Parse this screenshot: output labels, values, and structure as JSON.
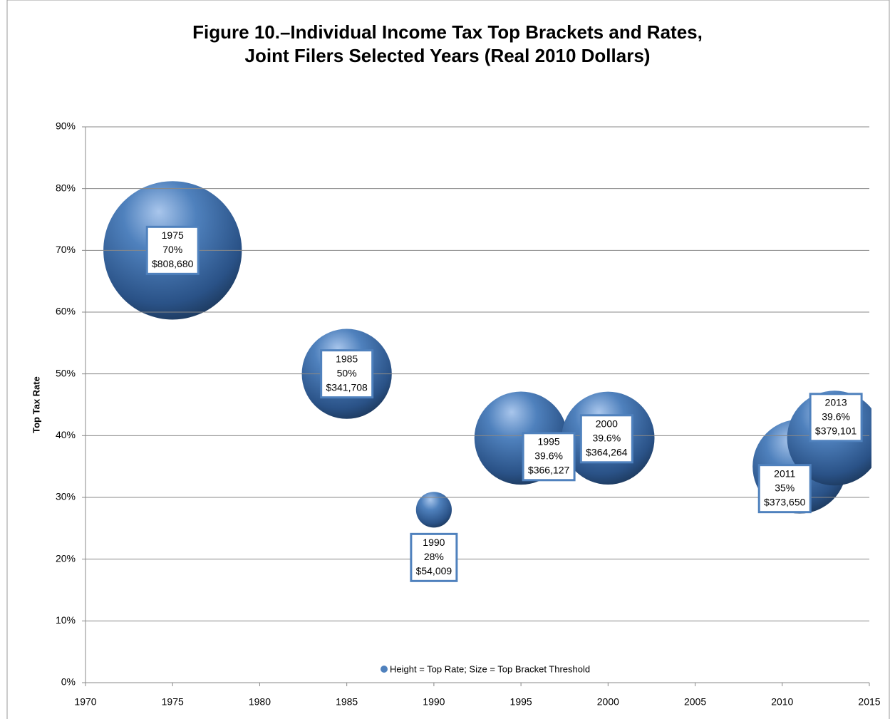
{
  "chart_data": {
    "type": "bubble",
    "title": [
      "Figure 10.–Individual Income Tax Top Brackets and Rates,",
      "Joint Filers Selected Years (Real 2010 Dollars)"
    ],
    "y_label": "Top Tax Rate",
    "xlim": [
      1970,
      2015
    ],
    "xticks": [
      1970,
      1975,
      1980,
      1985,
      1990,
      1995,
      2000,
      2005,
      2010,
      2015
    ],
    "ylim": [
      0,
      90
    ],
    "yticks": [
      {
        "value": 0,
        "label": "0%"
      },
      {
        "value": 10,
        "label": "10%"
      },
      {
        "value": 20,
        "label": "20%"
      },
      {
        "value": 30,
        "label": "30%"
      },
      {
        "value": 40,
        "label": "40%"
      },
      {
        "value": 50,
        "label": "50%"
      },
      {
        "value": 60,
        "label": "60%"
      },
      {
        "value": 70,
        "label": "70%"
      },
      {
        "value": 80,
        "label": "80%"
      },
      {
        "value": 90,
        "label": "90%"
      }
    ],
    "grid": true,
    "legend": "bottom",
    "series": [
      {
        "name": "Height = Top Rate; Size = Top Bracket Threshold",
        "color": "#4f81bd",
        "x": [
          1975,
          1985,
          1990,
          1995,
          2000,
          2011,
          2013
        ],
        "values": [
          70,
          50,
          28,
          39.6,
          39.6,
          35,
          39.6
        ],
        "value_labels": [
          "70%",
          "50%",
          "28%",
          "39.6%",
          "39.6%",
          "35%",
          "39.6%"
        ],
        "sizes": [
          808680,
          341708,
          54009,
          366127,
          364264,
          373650,
          379101
        ],
        "size_labels": [
          "$808,680",
          "$341,708",
          "$54,009",
          "$366,127",
          "$364,264",
          "$373,650",
          "$379,101"
        ]
      }
    ]
  }
}
